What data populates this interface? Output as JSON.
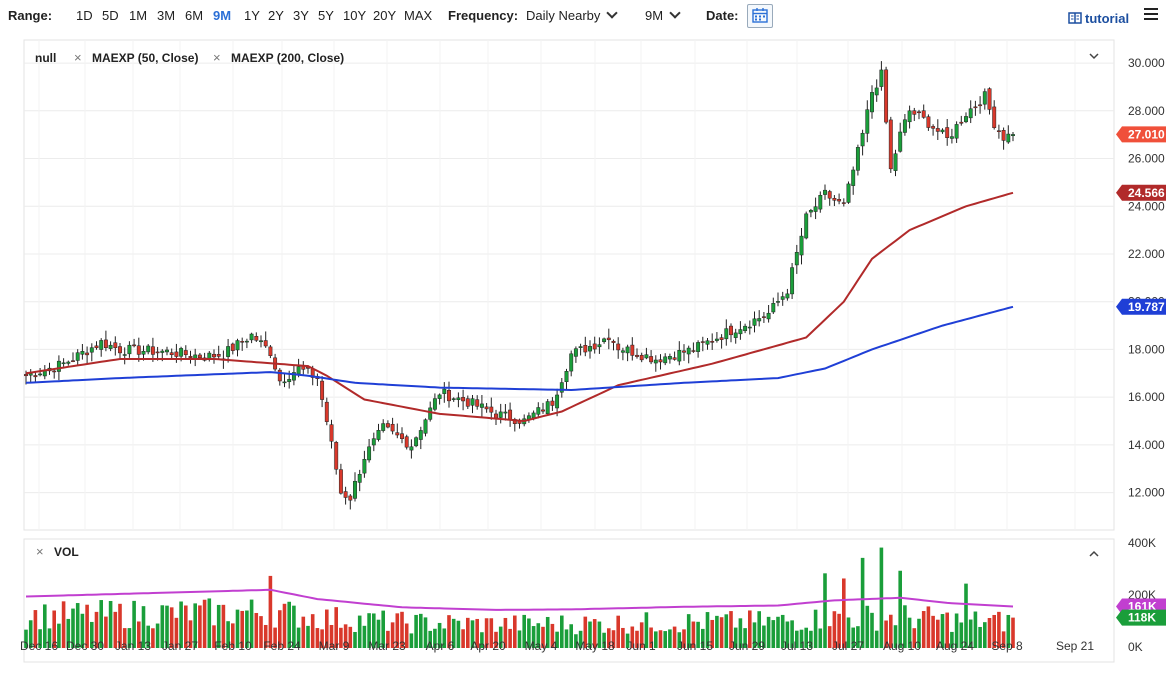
{
  "toolbar": {
    "range_label": "Range:",
    "ranges": [
      "1D",
      "5D",
      "1M",
      "3M",
      "6M",
      "9M",
      "1Y",
      "2Y",
      "3Y",
      "5Y",
      "10Y",
      "20Y",
      "MAX"
    ],
    "active_range": "9M",
    "frequency_label": "Frequency:",
    "frequency_value": "Daily Nearby",
    "period_value": "9M",
    "date_label": "Date:",
    "tutorial_label": "tutorial"
  },
  "legend": {
    "symbol": "null",
    "ma50": "MAEXP (50, Close)",
    "ma200": "MAEXP (200, Close)",
    "vol": "VOL"
  },
  "badges": {
    "last": "27.010",
    "ma50": "24.566",
    "ma200": "19.787",
    "vol_ma": "161K",
    "vol": "118K"
  },
  "colors": {
    "up": "#1a9e3a",
    "down": "#d9382b",
    "ma50": "#b12a2a",
    "ma200": "#1f3fd6",
    "vol_ma": "#c13fd0",
    "last_badge": "#f0503a"
  },
  "chart_data": {
    "type": "candlestick",
    "price_axis": {
      "ticks": [
        "30.000",
        "28.000",
        "26.000",
        "24.000",
        "22.000",
        "20.000",
        "18.000",
        "16.000",
        "14.000",
        "12.000"
      ],
      "ylim": [
        10.6,
        30.8
      ]
    },
    "volume_axis": {
      "ticks": [
        "400K",
        "200K",
        "0K"
      ],
      "ylim": [
        0,
        400000
      ]
    },
    "x_ticks": [
      "Dec 16",
      "Dec 30",
      "Jan 13",
      "Jan 27",
      "Feb 10",
      "Feb 24",
      "Mar 9",
      "Mar 23",
      "Apr 6",
      "Apr 20",
      "May 4",
      "May 18",
      "Jun 1",
      "Jun 15",
      "Jun 29",
      "Jul 13",
      "Jul 27",
      "Aug 10",
      "Aug 24",
      "Sep 8",
      "Sep 21"
    ],
    "anchors": [
      [
        0,
        16.9
      ],
      [
        8,
        17.4
      ],
      [
        16,
        18.3
      ],
      [
        20,
        18.0
      ],
      [
        30,
        17.9
      ],
      [
        38,
        17.7
      ],
      [
        42,
        17.8
      ],
      [
        48,
        18.6
      ],
      [
        52,
        17.9
      ],
      [
        54,
        16.7
      ],
      [
        58,
        17.2
      ],
      [
        62,
        16.8
      ],
      [
        64,
        15.0
      ],
      [
        67,
        12.0
      ],
      [
        69,
        11.8
      ],
      [
        72,
        13.5
      ],
      [
        76,
        14.7
      ],
      [
        82,
        14.0
      ],
      [
        88,
        16.2
      ],
      [
        94,
        15.8
      ],
      [
        100,
        15.3
      ],
      [
        106,
        15.0
      ],
      [
        112,
        15.8
      ],
      [
        116,
        17.8
      ],
      [
        122,
        18.3
      ],
      [
        124,
        18.6
      ],
      [
        126,
        18.1
      ],
      [
        134,
        17.6
      ],
      [
        142,
        18.0
      ],
      [
        150,
        18.8
      ],
      [
        158,
        19.5
      ],
      [
        162,
        20.5
      ],
      [
        166,
        23.5
      ],
      [
        170,
        24.5
      ],
      [
        174,
        24.0
      ],
      [
        178,
        27.0
      ],
      [
        180,
        28.8
      ],
      [
        182,
        29.5
      ],
      [
        184,
        25.5
      ],
      [
        186,
        27.0
      ],
      [
        188,
        28.0
      ],
      [
        192,
        27.5
      ],
      [
        196,
        26.8
      ],
      [
        200,
        27.9
      ],
      [
        204,
        28.6
      ],
      [
        206,
        27.5
      ],
      [
        208,
        26.9
      ],
      [
        210,
        27.01
      ]
    ],
    "ma50_anchors": [
      [
        0,
        17.0
      ],
      [
        20,
        17.6
      ],
      [
        40,
        17.6
      ],
      [
        60,
        17.3
      ],
      [
        64,
        16.9
      ],
      [
        72,
        15.9
      ],
      [
        88,
        15.3
      ],
      [
        106,
        15.0
      ],
      [
        114,
        15.4
      ],
      [
        126,
        16.5
      ],
      [
        146,
        17.4
      ],
      [
        166,
        18.5
      ],
      [
        174,
        20.0
      ],
      [
        180,
        21.8
      ],
      [
        188,
        23.0
      ],
      [
        200,
        24.0
      ],
      [
        210,
        24.566
      ]
    ],
    "ma200_anchors": [
      [
        0,
        16.6
      ],
      [
        20,
        16.8
      ],
      [
        52,
        17.05
      ],
      [
        60,
        16.9
      ],
      [
        70,
        16.6
      ],
      [
        88,
        16.4
      ],
      [
        116,
        16.3
      ],
      [
        140,
        16.6
      ],
      [
        160,
        16.8
      ],
      [
        170,
        17.2
      ],
      [
        180,
        18.0
      ],
      [
        195,
        19.0
      ],
      [
        210,
        19.787
      ]
    ],
    "volume_ma_anchors": [
      [
        0,
        200000
      ],
      [
        30,
        215000
      ],
      [
        52,
        226000
      ],
      [
        62,
        190000
      ],
      [
        80,
        158000
      ],
      [
        100,
        148000
      ],
      [
        116,
        150000
      ],
      [
        140,
        160000
      ],
      [
        160,
        165000
      ],
      [
        172,
        185000
      ],
      [
        186,
        195000
      ],
      [
        196,
        175000
      ],
      [
        210,
        161000
      ]
    ],
    "volume_spikes": [
      [
        52,
        280000
      ],
      [
        178,
        350000
      ],
      [
        182,
        390000
      ],
      [
        186,
        300000
      ],
      [
        200,
        250000
      ],
      [
        170,
        290000
      ],
      [
        174,
        270000
      ]
    ],
    "last_close": 27.01,
    "last_volume": 118000
  }
}
